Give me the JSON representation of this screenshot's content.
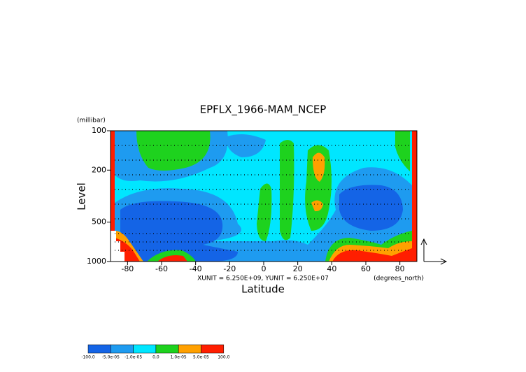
{
  "chart_data": {
    "type": "contour",
    "title": "EPFLX_1966-MAM_NCEP",
    "y_units": "(millibar)",
    "y_label": "Level",
    "x_label": "Latitude",
    "x_units": "(degrees_north)",
    "vector_units": "XUNIT = 6.250E+09, YUNIT = 6.250E+07",
    "xlim": [
      -90,
      90
    ],
    "xticks": [
      -80,
      -60,
      -40,
      -20,
      0,
      20,
      40,
      60,
      80
    ],
    "ylim": [
      1000,
      100
    ],
    "yticks": [
      100,
      200,
      500,
      1000
    ],
    "log_y": true,
    "colorbar": {
      "labels": [
        "-100.0",
        "-5.0e-05",
        "-1.0e-05",
        "0.0",
        "1.0e-05",
        "5.0e-05",
        "100.0"
      ],
      "colors": [
        "#1464e6",
        "#1e9bf0",
        "#00e6ff",
        "#1ed21e",
        "#ffa000",
        "#ff1e00"
      ]
    }
  }
}
